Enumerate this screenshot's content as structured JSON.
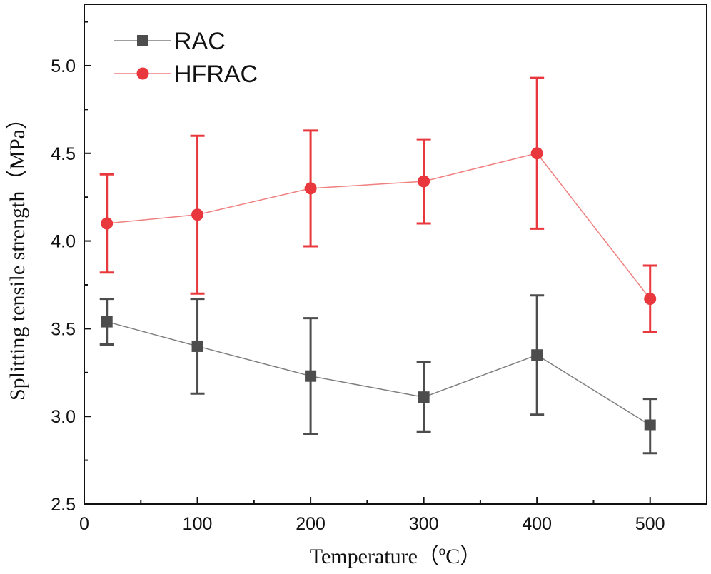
{
  "chart_data": {
    "type": "line",
    "title": "",
    "xlabel": "Temperature（ºC）",
    "ylabel": "Splitting tensile strength（MPa）",
    "x": [
      20,
      100,
      200,
      300,
      400,
      500
    ],
    "xlim": [
      0,
      550
    ],
    "ylim": [
      2.5,
      5.35
    ],
    "xticks": [
      0,
      100,
      200,
      300,
      400,
      500
    ],
    "yticks": [
      2.5,
      3.0,
      3.5,
      4.0,
      4.5,
      5.0
    ],
    "xtick_labels": [
      "0",
      "100",
      "200",
      "300",
      "400",
      "500"
    ],
    "ytick_labels": [
      "2.5",
      "3.0",
      "3.5",
      "4.0",
      "4.5",
      "5.0"
    ],
    "grid": false,
    "legend_position": "top-left",
    "series": [
      {
        "name": "RAC",
        "marker": "square",
        "color": "#4d4d4d",
        "line_color": "#7f7f7f",
        "values": [
          3.54,
          3.4,
          3.23,
          3.11,
          3.35,
          2.95
        ],
        "error_low": [
          3.41,
          3.13,
          2.9,
          2.91,
          3.01,
          2.79
        ],
        "error_high": [
          3.67,
          3.67,
          3.56,
          3.31,
          3.69,
          3.1
        ]
      },
      {
        "name": "HFRAC",
        "marker": "circle",
        "color": "#e8383d",
        "line_color": "#f08080",
        "values": [
          4.1,
          4.15,
          4.3,
          4.34,
          4.5,
          3.67
        ],
        "error_low": [
          3.82,
          3.7,
          3.97,
          4.1,
          4.07,
          3.48
        ],
        "error_high": [
          4.38,
          4.6,
          4.63,
          4.58,
          4.93,
          3.86
        ]
      }
    ]
  }
}
